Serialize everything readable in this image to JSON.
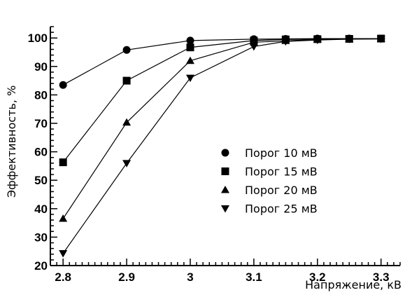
{
  "chart_data": {
    "type": "line",
    "title": "",
    "xlabel": "Напряжение, кВ",
    "ylabel": "Эффективность, %",
    "xlim": [
      2.78,
      3.33
    ],
    "ylim": [
      20,
      104
    ],
    "x_ticks": [
      2.8,
      2.9,
      3.0,
      3.1,
      3.2,
      3.3
    ],
    "x_tick_labels": [
      "2.8",
      "2.9",
      "3",
      "3.1",
      "3.2",
      "3.3"
    ],
    "y_ticks": [
      20,
      30,
      40,
      50,
      60,
      70,
      80,
      90,
      100
    ],
    "y_tick_labels": [
      "20",
      "30",
      "40",
      "50",
      "60",
      "70",
      "80",
      "90",
      "100"
    ],
    "grid": false,
    "legend_position": "center-right",
    "series": [
      {
        "name": "Порог 10 мВ",
        "marker": "circle",
        "x": [
          2.8,
          2.9,
          3.0,
          3.1,
          3.15,
          3.2,
          3.25,
          3.3
        ],
        "values": [
          83.5,
          95.8,
          99.1,
          99.6,
          99.7,
          99.8,
          99.8,
          99.8
        ]
      },
      {
        "name": "Порог 15 мВ",
        "marker": "square",
        "x": [
          2.8,
          2.9,
          3.0,
          3.1,
          3.15,
          3.2,
          3.25,
          3.3
        ],
        "values": [
          56.3,
          85.0,
          96.7,
          99.1,
          99.5,
          99.6,
          99.7,
          99.8
        ]
      },
      {
        "name": "Порог 20 мВ",
        "marker": "triangle-up",
        "x": [
          2.8,
          2.9,
          3.0,
          3.1,
          3.15,
          3.2,
          3.25,
          3.3
        ],
        "values": [
          36.5,
          70.3,
          92.0,
          98.5,
          99.0,
          99.5,
          99.6,
          99.7
        ]
      },
      {
        "name": "Порог 25 мВ",
        "marker": "triangle-down",
        "x": [
          2.8,
          2.9,
          3.0,
          3.1,
          3.15,
          3.2,
          3.25,
          3.3
        ],
        "values": [
          24.3,
          56.0,
          86.0,
          97.0,
          98.8,
          99.3,
          99.6,
          99.7
        ]
      }
    ]
  }
}
